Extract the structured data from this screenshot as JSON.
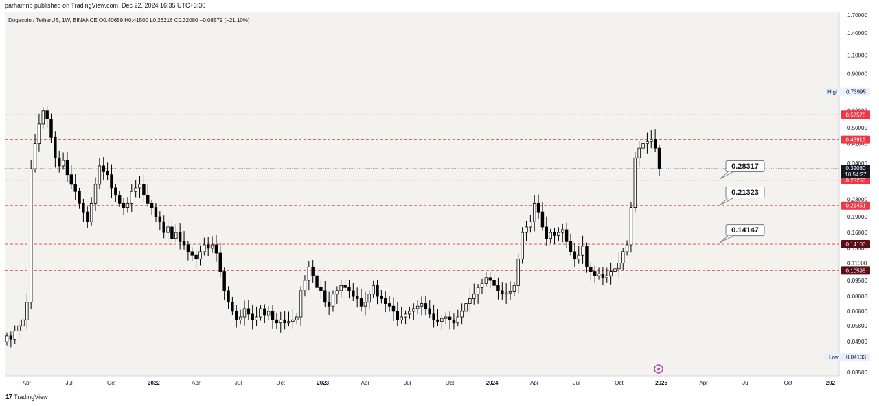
{
  "header": {
    "published_by": "parhamnb published on TradingView.com, Dec 22, 2024 16:35 UTC+3:30"
  },
  "legend": {
    "symbol_line": "Dogecoin / TetherUS, 1W, BINANCE  O0.40659  H0.41500  L0.26216  C0.32080  −0.08579 (−21.10%)"
  },
  "footer": {
    "brand": "TradingView",
    "logo": "17"
  },
  "colors": {
    "background": "#f4f2ee",
    "candle_up": "#ffffff",
    "candle_down": "#000000",
    "wick": "#000000",
    "level_line": "#e0393e",
    "price_line": "#6b6b6b",
    "red_tag": "#f23645",
    "dark_red_tag": "#5b0f14",
    "current_tag": "#131722",
    "flash_icon": "#9c27b0"
  },
  "chart_data": {
    "type": "candlestick",
    "scale": "log",
    "y_axis_ticks": [
      "1.70000",
      "1.40000",
      "1.10000",
      "0.90000",
      "0.60000",
      "0.50000",
      "0.42000",
      "0.34000",
      "0.28000",
      "0.23000",
      "0.19000",
      "0.16000",
      "0.13500",
      "0.11500",
      "0.09500",
      "0.08000",
      "0.06800",
      "0.05800",
      "0.04900",
      "0.04133",
      "0.03500"
    ],
    "x_axis_ticks": [
      "Apr",
      "Jul",
      "Oct",
      "2022",
      "Apr",
      "Jul",
      "Oct",
      "2023",
      "Apr",
      "Jul",
      "Oct",
      "2024",
      "Apr",
      "Jul",
      "Oct",
      "2025",
      "Apr",
      "Jul",
      "Oct",
      "202"
    ],
    "x_axis_bold": [
      "2022",
      "2023",
      "2024",
      "2025",
      "202"
    ],
    "high": {
      "label": "High",
      "value": "0.73995"
    },
    "low": {
      "label": "Low",
      "value": "0.04133"
    },
    "current_price": {
      "value": "0.32080",
      "countdown": "10:54:27"
    },
    "levels": [
      {
        "value": 0.5757,
        "label": "0.57570",
        "tag": "red"
      },
      {
        "value": 0.43913,
        "label": "0.43913",
        "tag": "red"
      },
      {
        "value": 0.28253,
        "label": "0.28253",
        "tag": "red"
      },
      {
        "value": 0.21451,
        "label": "0.21451",
        "tag": "red"
      },
      {
        "value": 0.141,
        "label": "0.14100",
        "tag": "dark"
      },
      {
        "value": 0.10595,
        "label": "0.10595",
        "tag": "dark"
      }
    ],
    "annotations": [
      {
        "text": "0.28317",
        "price": 0.28317
      },
      {
        "text": "0.21323",
        "price": 0.21323
      },
      {
        "text": "0.14147",
        "price": 0.14147
      }
    ],
    "closes": [
      0.052,
      0.05,
      0.055,
      0.058,
      0.062,
      0.075,
      0.32,
      0.42,
      0.52,
      0.6,
      0.55,
      0.45,
      0.36,
      0.33,
      0.35,
      0.3,
      0.27,
      0.25,
      0.22,
      0.2,
      0.18,
      0.22,
      0.27,
      0.33,
      0.31,
      0.3,
      0.26,
      0.24,
      0.22,
      0.21,
      0.22,
      0.25,
      0.26,
      0.27,
      0.24,
      0.22,
      0.21,
      0.19,
      0.18,
      0.16,
      0.17,
      0.15,
      0.16,
      0.145,
      0.14,
      0.13,
      0.125,
      0.12,
      0.13,
      0.14,
      0.135,
      0.14,
      0.128,
      0.105,
      0.085,
      0.075,
      0.068,
      0.062,
      0.064,
      0.07,
      0.066,
      0.062,
      0.064,
      0.07,
      0.065,
      0.068,
      0.062,
      0.06,
      0.062,
      0.06,
      0.061,
      0.062,
      0.064,
      0.085,
      0.095,
      0.11,
      0.1,
      0.088,
      0.085,
      0.075,
      0.072,
      0.082,
      0.085,
      0.09,
      0.088,
      0.085,
      0.08,
      0.078,
      0.072,
      0.075,
      0.082,
      0.09,
      0.08,
      0.078,
      0.074,
      0.072,
      0.068,
      0.062,
      0.064,
      0.066,
      0.068,
      0.07,
      0.072,
      0.074,
      0.07,
      0.066,
      0.062,
      0.061,
      0.063,
      0.064,
      0.062,
      0.06,
      0.064,
      0.068,
      0.074,
      0.078,
      0.082,
      0.088,
      0.092,
      0.098,
      0.095,
      0.09,
      0.085,
      0.082,
      0.083,
      0.084,
      0.09,
      0.12,
      0.16,
      0.17,
      0.18,
      0.22,
      0.2,
      0.17,
      0.15,
      0.16,
      0.155,
      0.16,
      0.165,
      0.145,
      0.13,
      0.12,
      0.125,
      0.138,
      0.11,
      0.105,
      0.1,
      0.102,
      0.098,
      0.1,
      0.105,
      0.108,
      0.115,
      0.13,
      0.14,
      0.21,
      0.36,
      0.4,
      0.42,
      0.43,
      0.44,
      0.4,
      0.3208
    ],
    "candle_note": "Weekly DOGE/USDT candles from ~Jan 2021 to Dec 2024; closes approximated from the chart."
  }
}
